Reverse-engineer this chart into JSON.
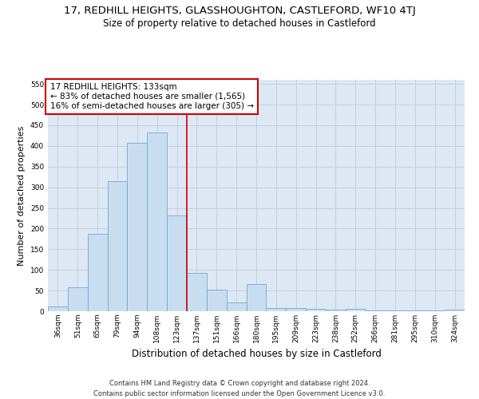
{
  "title": "17, REDHILL HEIGHTS, GLASSHOUGHTON, CASTLEFORD, WF10 4TJ",
  "subtitle": "Size of property relative to detached houses in Castleford",
  "xlabel": "Distribution of detached houses by size in Castleford",
  "ylabel": "Number of detached properties",
  "footer_line1": "Contains HM Land Registry data © Crown copyright and database right 2024.",
  "footer_line2": "Contains public sector information licensed under the Open Government Licence v3.0.",
  "bar_labels": [
    "36sqm",
    "51sqm",
    "65sqm",
    "79sqm",
    "94sqm",
    "108sqm",
    "123sqm",
    "137sqm",
    "151sqm",
    "166sqm",
    "180sqm",
    "195sqm",
    "209sqm",
    "223sqm",
    "238sqm",
    "252sqm",
    "266sqm",
    "281sqm",
    "295sqm",
    "310sqm",
    "324sqm"
  ],
  "bar_values": [
    11,
    58,
    187,
    315,
    408,
    433,
    232,
    93,
    53,
    21,
    65,
    8,
    8,
    5,
    4,
    5,
    1,
    2,
    1,
    1,
    3
  ],
  "bar_color": "#c9ddf0",
  "bar_edge_color": "#6aaad4",
  "annotation_title": "17 REDHILL HEIGHTS: 133sqm",
  "annotation_line1": "← 83% of detached houses are smaller (1,565)",
  "annotation_line2": "16% of semi-detached houses are larger (305) →",
  "vline_color": "#cc0000",
  "annotation_box_color": "#ffffff",
  "annotation_box_edge": "#cc0000",
  "ylim": [
    0,
    560
  ],
  "yticks": [
    0,
    50,
    100,
    150,
    200,
    250,
    300,
    350,
    400,
    450,
    500,
    550
  ],
  "grid_color": "#c0d0e0",
  "background_color": "#dde8f4",
  "title_fontsize": 9.5,
  "subtitle_fontsize": 8.5,
  "footer_fontsize": 6.0,
  "ylabel_fontsize": 8,
  "xlabel_fontsize": 8.5,
  "annot_fontsize": 7.5,
  "tick_fontsize": 6.5
}
